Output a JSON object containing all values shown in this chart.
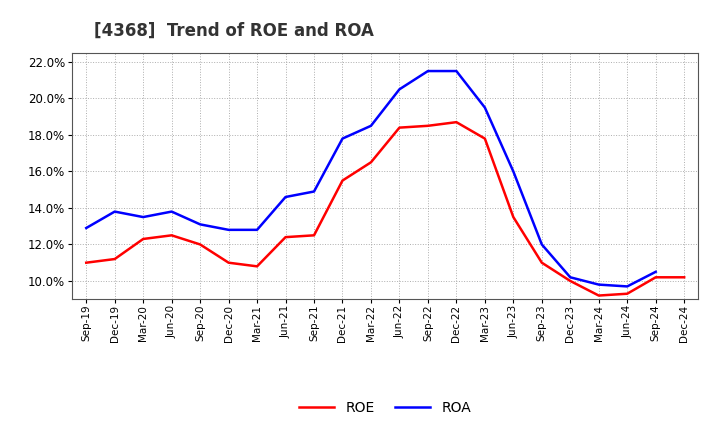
{
  "title": "[4368]  Trend of ROE and ROA",
  "x_labels": [
    "Sep-19",
    "Dec-19",
    "Mar-20",
    "Jun-20",
    "Sep-20",
    "Dec-20",
    "Mar-21",
    "Jun-21",
    "Sep-21",
    "Dec-21",
    "Mar-22",
    "Jun-22",
    "Sep-22",
    "Dec-22",
    "Mar-23",
    "Jun-23",
    "Sep-23",
    "Dec-23",
    "Mar-24",
    "Jun-24",
    "Sep-24",
    "Dec-24"
  ],
  "roe": [
    11.0,
    11.2,
    12.3,
    12.5,
    12.0,
    11.0,
    10.8,
    12.4,
    12.5,
    15.5,
    16.5,
    18.4,
    18.5,
    18.7,
    17.8,
    13.5,
    11.0,
    10.0,
    9.2,
    9.3,
    10.2,
    10.2
  ],
  "roa": [
    12.9,
    13.8,
    13.5,
    13.8,
    13.1,
    12.8,
    12.8,
    14.6,
    14.9,
    17.8,
    18.5,
    20.5,
    21.5,
    21.5,
    19.5,
    16.0,
    12.0,
    10.2,
    9.8,
    9.7,
    10.5,
    null
  ],
  "roe_color": "#ff0000",
  "roa_color": "#0000ff",
  "ylim": [
    9.0,
    22.5
  ],
  "yticks": [
    10.0,
    12.0,
    14.0,
    16.0,
    18.0,
    20.0,
    22.0
  ],
  "background_color": "#ffffff",
  "grid_color": "#999999",
  "title_fontsize": 12,
  "legend_fontsize": 10,
  "linewidth": 1.8
}
